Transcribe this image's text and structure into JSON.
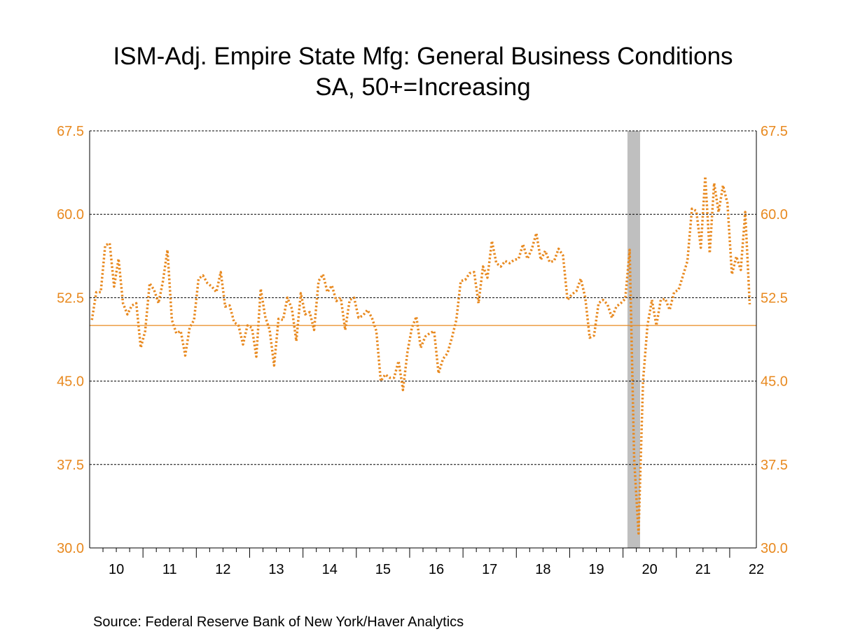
{
  "chart_data": {
    "type": "line",
    "title": "ISM-Adj. Empire State Mfg: General Business Conditions",
    "subtitle": "SA, 50+=Increasing",
    "source": "Source:  Federal Reserve Bank of New York/Haver Analytics",
    "ylim": [
      30.0,
      67.5
    ],
    "yticks": [
      "67.5",
      "60.0",
      "52.5",
      "45.0",
      "37.5",
      "30.0"
    ],
    "ytick_values": [
      67.5,
      60.0,
      52.5,
      45.0,
      37.5,
      30.0
    ],
    "xticks": [
      "10",
      "11",
      "12",
      "13",
      "14",
      "15",
      "16",
      "17",
      "18",
      "19",
      "20",
      "21",
      "22"
    ],
    "xlim": [
      "2010-01",
      "2022-06"
    ],
    "reference_line": 50,
    "recession_shading": [
      "2020-02",
      "2020-04"
    ],
    "grid": "horizontal dashed",
    "axes": "left and right",
    "colors": {
      "line": "#e8891f",
      "reference": "#e8891f",
      "recession": "#bfbfbf",
      "tick_labels": "#e8891f"
    },
    "series": [
      {
        "start": "2010-01",
        "frequency": "monthly",
        "style": "dotted",
        "values": [
          50.5,
          53,
          53,
          57.2,
          57.4,
          53.5,
          56,
          52,
          51,
          51.8,
          52,
          48,
          49.5,
          53.8,
          53.2,
          52,
          54,
          56.8,
          50.5,
          49.3,
          49.5,
          47.3,
          49.8,
          50.5,
          54.2,
          54.5,
          53.8,
          53.5,
          53,
          54.8,
          51.7,
          51.8,
          50.3,
          50,
          48.3,
          50,
          49.8,
          47.2,
          53.3,
          50.8,
          49.6,
          46.4,
          50.6,
          50.5,
          52.5,
          51.5,
          48.6,
          52.9,
          51,
          51.2,
          49.6,
          54,
          54.6,
          53,
          53.6,
          52.2,
          52.5,
          49.6,
          52.3,
          52.5,
          50.7,
          50.9,
          51.4,
          50.7,
          49.5,
          45,
          45.6,
          45.3,
          45.3,
          46.8,
          44.2,
          47.6,
          49.8,
          50.8,
          48,
          49,
          49.3,
          49.5,
          45.7,
          47,
          47.5,
          48.9,
          50.5,
          54,
          54.1,
          54.7,
          54.8,
          52,
          55.3,
          54.3,
          57.6,
          55.6,
          55.3,
          55.8,
          55.6,
          55.9,
          56,
          57.3,
          56,
          56.9,
          58.3,
          55.9,
          56.7,
          55.7,
          55.8,
          56.9,
          56.3,
          52.3,
          52.8,
          53.1,
          54.2,
          52.5,
          48.9,
          49.1,
          52,
          52.3,
          51.9,
          50.7,
          51.7,
          52,
          52.4,
          56.8,
          38,
          31.3,
          45,
          50,
          52.3,
          50,
          52.3,
          52.4,
          51.4,
          53,
          53.2,
          54.5,
          55.8,
          60.5,
          60.3,
          57,
          63.4,
          56.5,
          62.8,
          60.2,
          62.6,
          61,
          54.6,
          56.2,
          55,
          60.2,
          51.9
        ]
      }
    ]
  }
}
